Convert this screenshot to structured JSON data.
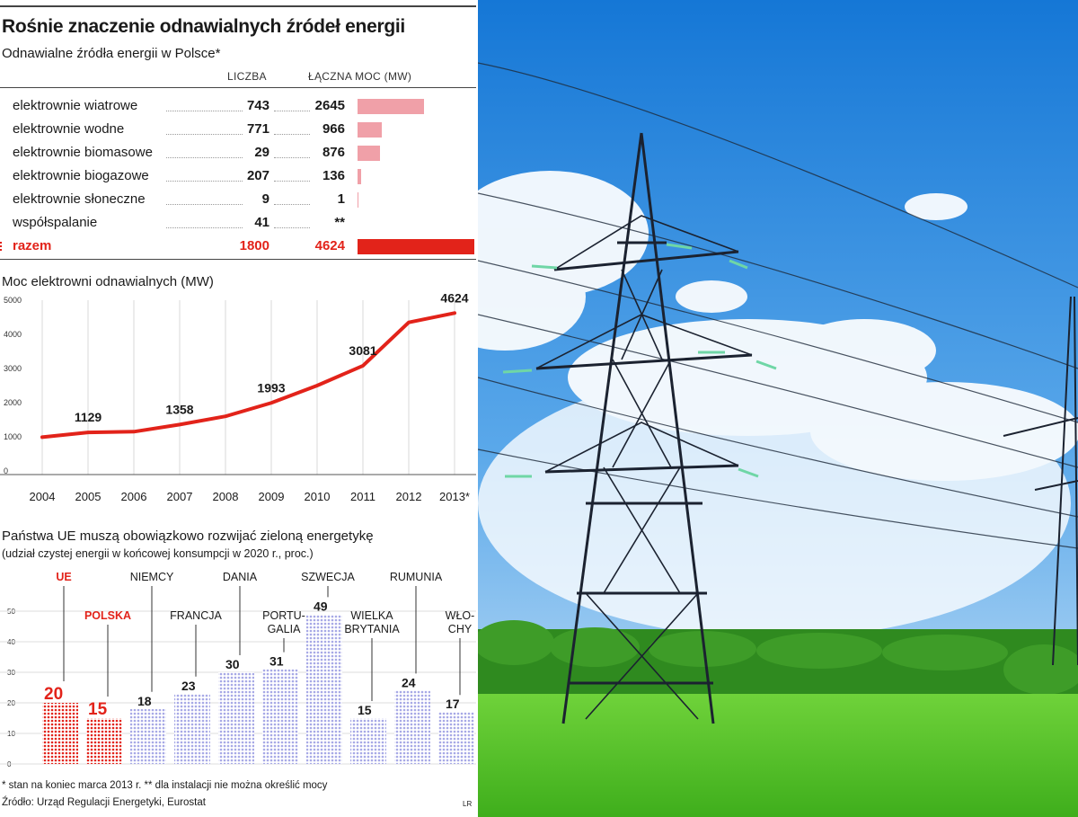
{
  "table": {
    "title": "Rośnie znaczenie odnawialnych źródeł energii",
    "subtitle": "Odnawialne źródła energii w Polsce*",
    "col_count": "LICZBA",
    "col_power": "ŁĄCZNA MOC (MW)",
    "rows": [
      {
        "label": "elektrownie wiatrowe",
        "count": "743",
        "power": "2645",
        "mw": 2645
      },
      {
        "label": "elektrownie wodne",
        "count": "771",
        "power": "966",
        "mw": 966
      },
      {
        "label": "elektrownie biomasowe",
        "count": "29",
        "power": "876",
        "mw": 876
      },
      {
        "label": "elektrownie biogazowe",
        "count": "207",
        "power": "136",
        "mw": 136
      },
      {
        "label": "elektrownie słoneczne",
        "count": "9",
        "power": "1",
        "mw": 1
      },
      {
        "label": "współspalanie",
        "count": "41",
        "power": "**",
        "mw": 0
      }
    ],
    "total": {
      "label": "razem",
      "count": "1800",
      "power": "4624",
      "mw": 4624
    },
    "colors": {
      "bar": "#f0a0a8",
      "total": "#e2231a"
    }
  },
  "chart_data": [
    {
      "type": "line",
      "title": "Moc elektrowni odnawialnych (MW)",
      "x": [
        "2004",
        "2005",
        "2006",
        "2007",
        "2008",
        "2009",
        "2010",
        "2011",
        "2012",
        "2013*"
      ],
      "series": [
        {
          "values": [
            990,
            1129,
            1150,
            1358,
            1600,
            1993,
            2500,
            3081,
            4350,
            4624
          ],
          "color": "#e2231a"
        }
      ],
      "data_labels": [
        {
          "index": 1,
          "text": "1129"
        },
        {
          "index": 3,
          "text": "1358"
        },
        {
          "index": 5,
          "text": "1993"
        },
        {
          "index": 7,
          "text": "3081"
        },
        {
          "index": 9,
          "text": "4624"
        }
      ],
      "yticks": [
        0,
        1000,
        2000,
        3000,
        4000,
        5000
      ],
      "ylim": [
        0,
        5000
      ],
      "grid": "vertical"
    },
    {
      "type": "bar",
      "title": "Państwa UE muszą obowiązkowo rozwijać zieloną energetykę",
      "subtitle": "(udział czystej energii w końcowej konsumpcji w 2020 r., proc.)",
      "categories": [
        "UE",
        "POLSKA",
        "NIEMCY",
        "FRANCJA",
        "DANIA",
        "PORTU-GALIA",
        "SZWECJA",
        "WIELKA BRYTANIA",
        "RUMUNIA",
        "WŁO-CHY"
      ],
      "category_lines": [
        [
          "UE"
        ],
        [
          "POLSKA"
        ],
        [
          "NIEMCY"
        ],
        [
          "FRANCJA"
        ],
        [
          "DANIA"
        ],
        [
          "PORTU-",
          "GALIA"
        ],
        [
          "SZWECJA"
        ],
        [
          "WIELKA",
          "BRYTANIA"
        ],
        [
          "RUMUNIA"
        ],
        [
          "WŁO-",
          "CHY"
        ]
      ],
      "values": [
        20,
        15,
        18,
        23,
        30,
        31,
        49,
        15,
        24,
        17
      ],
      "highlight": [
        true,
        true,
        false,
        false,
        false,
        false,
        false,
        false,
        false,
        false
      ],
      "yticks": [
        0,
        10,
        20,
        30,
        40,
        50
      ],
      "ylim": [
        0,
        50
      ],
      "colors": {
        "highlight": "#e2231a",
        "normal": "#a7a9e6"
      }
    }
  ],
  "footer": {
    "note": "* stan na koniec marca 2013 r.     ** dla instalacji nie można określić mocy",
    "source": "Źródło: Urząd Regulacji Energetyki, Eurostat",
    "credit": "LR"
  }
}
